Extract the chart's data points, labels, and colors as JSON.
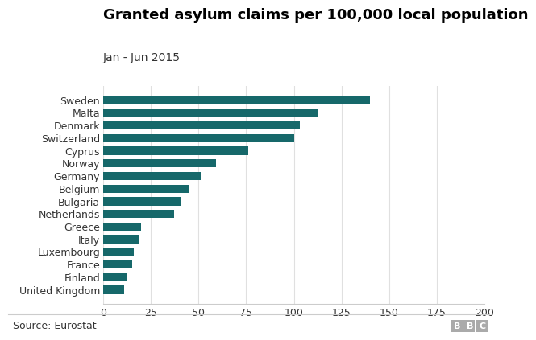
{
  "title": "Granted asylum claims per 100,000 local population",
  "subtitle": "Jan - Jun 2015",
  "source": "Source: Eurostat",
  "countries": [
    "United Kingdom",
    "Finland",
    "France",
    "Luxembourg",
    "Italy",
    "Greece",
    "Netherlands",
    "Bulgaria",
    "Belgium",
    "Germany",
    "Norway",
    "Cyprus",
    "Switzerland",
    "Denmark",
    "Malta",
    "Sweden"
  ],
  "values": [
    11,
    12,
    15,
    16,
    19,
    20,
    37,
    41,
    45,
    51,
    59,
    76,
    100,
    103,
    113,
    140
  ],
  "bar_color": "#16686a",
  "xlim": [
    0,
    200
  ],
  "xticks": [
    0,
    25,
    50,
    75,
    100,
    125,
    150,
    175,
    200
  ],
  "background_color": "#ffffff",
  "title_fontsize": 13,
  "subtitle_fontsize": 10,
  "tick_fontsize": 9,
  "label_fontsize": 9,
  "source_fontsize": 9,
  "bbc_box_color": "#aaaaaa",
  "bbc_text_color": "#ffffff",
  "grid_color": "#e0e0e0",
  "spine_color": "#cccccc"
}
